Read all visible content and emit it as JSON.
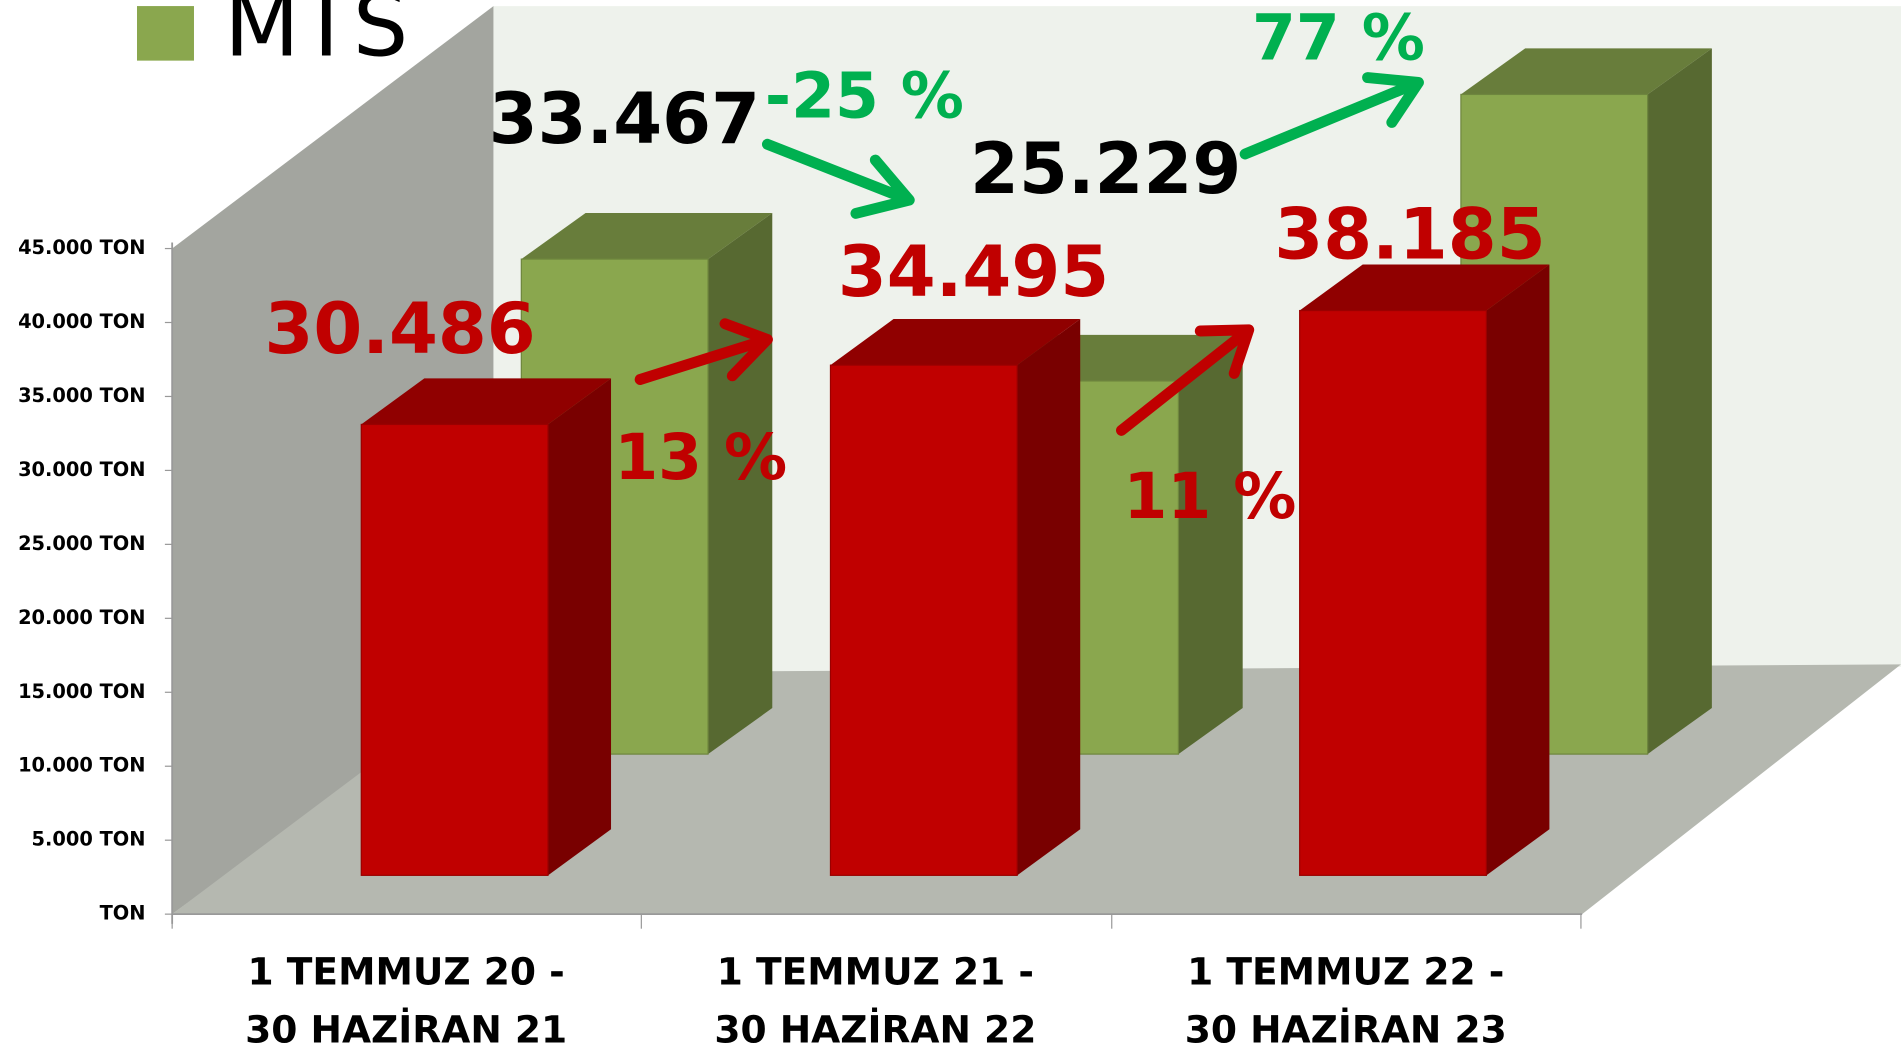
{
  "chart_data": {
    "type": "bar3d",
    "categories": [
      "1 TEMMUZ 20 -\n30 HAZİRAN 21",
      "1 TEMMUZ 21 -\n30 HAZİRAN 22",
      "1 TEMMUZ 22 -\n30 HAZİRAN 23"
    ],
    "series": [
      {
        "name": "MTS",
        "color": "#8aa74e",
        "values": [
          33467,
          25229,
          44600
        ],
        "value_labels": [
          "33.467",
          "25.229",
          null
        ],
        "label_color": "#000000"
      },
      {
        "color": "#c00000",
        "values": [
          30486,
          34495,
          38185
        ],
        "value_labels": [
          "30.486",
          "34.495",
          "38.185"
        ],
        "label_color": "#c00000"
      }
    ],
    "annotations": [
      {
        "text": "-25 %",
        "color": "#00b050"
      },
      {
        "text": "77 %",
        "color": "#00b050"
      },
      {
        "text": "13 %",
        "color": "#c00000"
      },
      {
        "text": "11 %",
        "color": "#c00000"
      }
    ],
    "ylim": [
      0,
      45000
    ],
    "yticks": [
      {
        "value": 0,
        "label": "TON"
      },
      {
        "value": 5000,
        "label": "5.000 TON"
      },
      {
        "value": 10000,
        "label": "10.000 TON"
      },
      {
        "value": 15000,
        "label": "15.000 TON"
      },
      {
        "value": 20000,
        "label": "20.000 TON"
      },
      {
        "value": 25000,
        "label": "25.000 TON"
      },
      {
        "value": 30000,
        "label": "30.000 TON"
      },
      {
        "value": 35000,
        "label": "35.000 TON"
      },
      {
        "value": 40000,
        "label": "40.000 TON"
      },
      {
        "value": 45000,
        "label": "45.000 TON"
      }
    ],
    "legend": "top-left"
  }
}
